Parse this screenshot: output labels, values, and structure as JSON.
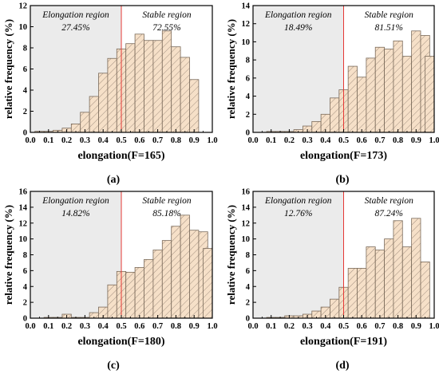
{
  "chart_data": [
    {
      "type": "bar",
      "panel_label": "(a)",
      "xlabel": "elongation(F=165)",
      "ylabel": "relative frequency (%)",
      "xlim": [
        0.0,
        1.0
      ],
      "ylim": [
        0,
        12
      ],
      "yticks": [
        0,
        2,
        4,
        6,
        8,
        10,
        12
      ],
      "xticks": [
        "0.0",
        "0.1",
        "0.2",
        "0.3",
        "0.4",
        "0.5",
        "0.6",
        "0.7",
        "0.8",
        "0.9",
        "1.0"
      ],
      "threshold": 0.5,
      "regions": {
        "left_label": "Elongation region",
        "left_percent": "27.45%",
        "right_label": "Stable region",
        "right_percent": "72.55%"
      },
      "bin_centers": [
        0.05,
        0.1,
        0.15,
        0.2,
        0.25,
        0.3,
        0.35,
        0.4,
        0.45,
        0.5,
        0.55,
        0.6,
        0.65,
        0.7,
        0.75,
        0.8,
        0.85,
        0.9,
        0.95
      ],
      "values": [
        0.1,
        0.1,
        0.2,
        0.4,
        0.8,
        1.9,
        3.4,
        5.6,
        7.0,
        7.9,
        8.4,
        9.3,
        8.7,
        8.7,
        9.6,
        8.1,
        7.1,
        5.0,
        0.0
      ]
    },
    {
      "type": "bar",
      "panel_label": "(b)",
      "xlabel": "elongation(F=173)",
      "ylabel": "relative frequency (%)",
      "xlim": [
        0.0,
        1.0
      ],
      "ylim": [
        0,
        14
      ],
      "yticks": [
        0,
        2,
        4,
        6,
        8,
        10,
        12,
        14
      ],
      "xticks": [
        "0.0",
        "0.1",
        "0.2",
        "0.3",
        "0.4",
        "0.5",
        "0.6",
        "0.7",
        "0.8",
        "0.9",
        "1.0"
      ],
      "threshold": 0.5,
      "regions": {
        "left_label": "Elongation region",
        "left_percent": "18.49%",
        "right_label": "Stable region",
        "right_percent": "81.51%"
      },
      "bin_centers": [
        0.05,
        0.1,
        0.15,
        0.2,
        0.25,
        0.3,
        0.35,
        0.4,
        0.45,
        0.5,
        0.55,
        0.6,
        0.65,
        0.7,
        0.75,
        0.8,
        0.85,
        0.9,
        0.95
      ],
      "values": [
        0.0,
        0.1,
        0.1,
        0.1,
        0.3,
        0.7,
        1.2,
        2.0,
        3.8,
        4.7,
        7.3,
        6.1,
        8.2,
        9.4,
        9.2,
        10.1,
        8.4,
        11.2,
        10.7
      ],
      "extra_bar": {
        "center": 0.975,
        "value": 8.4
      }
    },
    {
      "type": "bar",
      "panel_label": "(c)",
      "xlabel": "elongation(F=180)",
      "ylabel": "relative frequency (%)",
      "xlim": [
        0.0,
        1.0
      ],
      "ylim": [
        0,
        16
      ],
      "yticks": [
        0,
        2,
        4,
        6,
        8,
        10,
        12,
        14,
        16
      ],
      "xticks": [
        "0.0",
        "0.1",
        "0.2",
        "0.3",
        "0.4",
        "0.5",
        "0.6",
        "0.7",
        "0.8",
        "0.9",
        "1.0"
      ],
      "threshold": 0.5,
      "regions": {
        "left_label": "Elongation region",
        "left_percent": "14.82%",
        "right_label": "Stable region",
        "right_percent": "85.18%"
      },
      "bin_centers": [
        0.05,
        0.1,
        0.15,
        0.2,
        0.25,
        0.3,
        0.35,
        0.4,
        0.45,
        0.5,
        0.55,
        0.6,
        0.65,
        0.7,
        0.75,
        0.8,
        0.85,
        0.9,
        0.95
      ],
      "values": [
        0.0,
        0.1,
        0.1,
        0.5,
        0.1,
        0.1,
        0.7,
        1.4,
        4.2,
        5.9,
        5.8,
        6.4,
        7.4,
        8.6,
        9.8,
        11.6,
        13.0,
        11.1,
        10.9
      ],
      "extra_bar": {
        "center": 0.975,
        "value": 8.8
      }
    },
    {
      "type": "bar",
      "panel_label": "(d)",
      "xlabel": "elongation(F=191)",
      "ylabel": "relative frequency (%)",
      "xlim": [
        0.0,
        1.0
      ],
      "ylim": [
        0,
        16
      ],
      "yticks": [
        0,
        2,
        4,
        6,
        8,
        10,
        12,
        14,
        16
      ],
      "xticks": [
        "0.0",
        "0.1",
        "0.2",
        "0.3",
        "0.4",
        "0.5",
        "0.6",
        "0.7",
        "0.8",
        "0.9",
        "1.0"
      ],
      "threshold": 0.5,
      "regions": {
        "left_label": "Elongation region",
        "left_percent": "12.76%",
        "right_label": "Stable region",
        "right_percent": "87.24%"
      },
      "bin_centers": [
        0.05,
        0.1,
        0.15,
        0.2,
        0.25,
        0.3,
        0.35,
        0.4,
        0.45,
        0.5,
        0.55,
        0.6,
        0.65,
        0.7,
        0.75,
        0.8,
        0.85,
        0.9,
        0.95
      ],
      "values": [
        0.0,
        0.1,
        0.1,
        0.3,
        0.3,
        0.5,
        0.9,
        1.4,
        2.4,
        3.9,
        6.3,
        6.3,
        9.0,
        8.6,
        10.0,
        12.3,
        9.0,
        12.6,
        7.1
      ]
    }
  ],
  "colors": {
    "bar_fill": "#f6e0c8",
    "bar_stroke": "#7a6a5a",
    "hatch": "#a39080",
    "region_shade": "#ebebeb",
    "threshold_line": "#e53935",
    "axis": "#000000"
  }
}
